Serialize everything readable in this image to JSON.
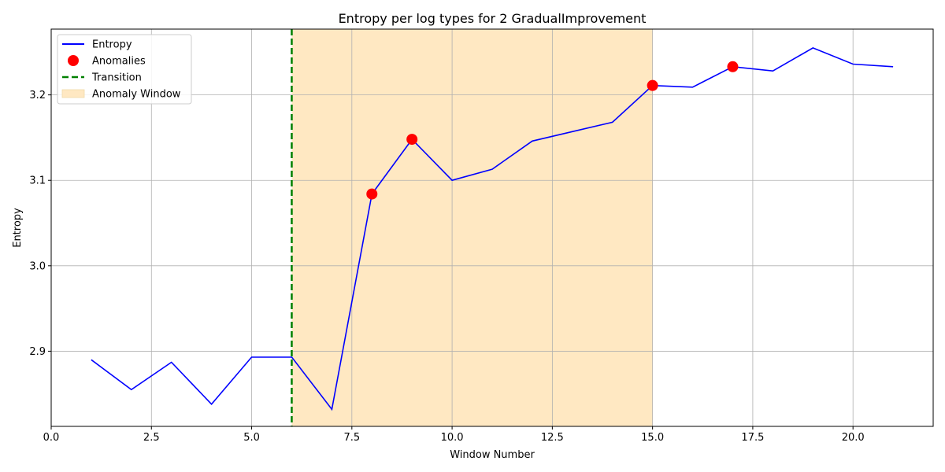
{
  "chart_data": {
    "type": "line",
    "title": "Entropy per log types for 2 GradualImprovement",
    "xlabel": "Window Number",
    "ylabel": "Entropy",
    "xlim": [
      0,
      22.0
    ],
    "ylim": [
      2.812,
      3.277
    ],
    "xticks": [
      0.0,
      2.5,
      5.0,
      7.5,
      10.0,
      12.5,
      15.0,
      17.5,
      20.0
    ],
    "xtick_labels": [
      "0.0",
      "2.5",
      "5.0",
      "7.5",
      "10.0",
      "12.5",
      "15.0",
      "17.5",
      "20.0"
    ],
    "yticks": [
      2.9,
      3.0,
      3.1,
      3.2
    ],
    "ytick_labels": [
      "2.9",
      "3.0",
      "3.1",
      "3.2"
    ],
    "grid": true,
    "legend_position": "upper-left",
    "series": [
      {
        "name": "Entropy",
        "kind": "line",
        "color": "#0000ff",
        "x": [
          1,
          2,
          3,
          4,
          5,
          6,
          7,
          8,
          9,
          10,
          11,
          12,
          13,
          14,
          15,
          16,
          17,
          18,
          19,
          20,
          21
        ],
        "y": [
          2.89,
          2.855,
          2.887,
          2.838,
          2.893,
          2.893,
          2.832,
          3.084,
          3.148,
          3.1,
          3.113,
          3.146,
          3.157,
          3.168,
          3.211,
          3.209,
          3.233,
          3.228,
          3.255,
          3.236,
          3.233
        ]
      },
      {
        "name": "Anomalies",
        "kind": "scatter",
        "color": "#ff0000",
        "x": [
          8,
          9,
          15,
          17
        ],
        "y": [
          3.084,
          3.148,
          3.211,
          3.233
        ]
      }
    ],
    "transition": {
      "name": "Transition",
      "x": 6,
      "color": "#008000"
    },
    "anomaly_window": {
      "name": "Anomaly Window",
      "x_start": 6,
      "x_end": 15,
      "color": "#ffe8c2"
    }
  }
}
